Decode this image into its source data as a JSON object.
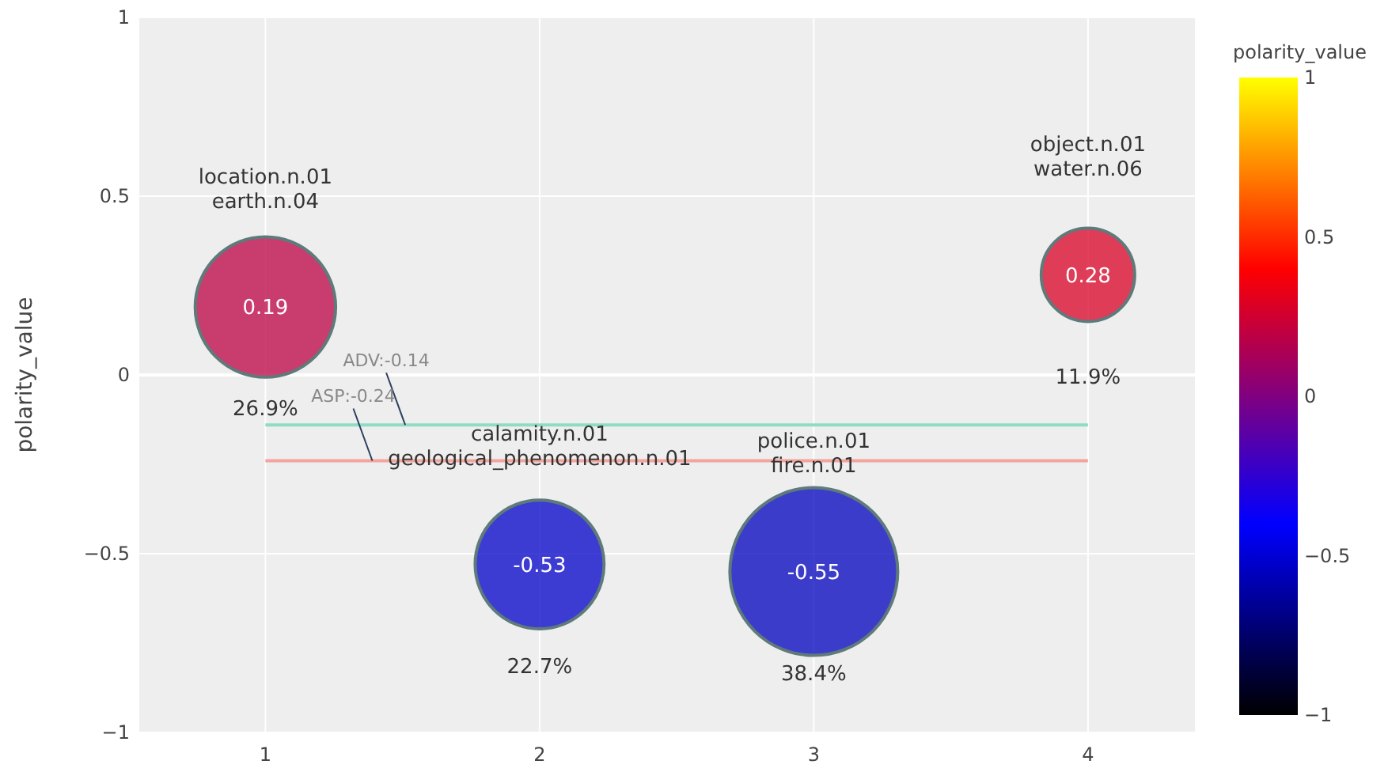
{
  "chart_data": {
    "type": "bubble",
    "ylabel": "polarity_value",
    "clabel": "polarity_value",
    "x": [
      1,
      2,
      3,
      4
    ],
    "values": [
      0.19,
      -0.53,
      -0.55,
      0.28
    ],
    "cvalues": [
      0.19,
      -0.53,
      -0.55,
      0.28
    ],
    "sizes": [
      0.7,
      0.59,
      1,
      0.31
    ],
    "data_labels": true,
    "xlim": [
      0.54,
      4.39
    ],
    "xticks": [
      1,
      2,
      3,
      4
    ],
    "ylim": [
      -1,
      1
    ],
    "yticks": [
      {
        "value": -1,
        "label": "−1"
      },
      {
        "value": -0.5,
        "label": "−0.5"
      },
      0,
      0.5,
      1
    ],
    "clim": [
      -1,
      1
    ],
    "cticks": [
      {
        "value": -1,
        "label": "−1"
      },
      {
        "value": -0.5,
        "label": "−0.5"
      },
      0,
      0.5,
      1
    ],
    "grid": true,
    "ref_lines": [
      {
        "axis": "y",
        "value": -0.14,
        "label": "ADV:-0.14",
        "color": "#8fdcc4"
      },
      {
        "axis": "y",
        "value": -0.24,
        "label": "ASP:-0.24",
        "color": "#f4a49c"
      }
    ],
    "annotations": [
      "location.n.01\nearth.n.04",
      "calamity.n.01\ngeological_phenomenon.n.01",
      "police.n.01\nfire.n.01",
      "object.n.01\nwater.n.06",
      "26.9%",
      "22.7%",
      "38.4%",
      "11.9%"
    ]
  }
}
